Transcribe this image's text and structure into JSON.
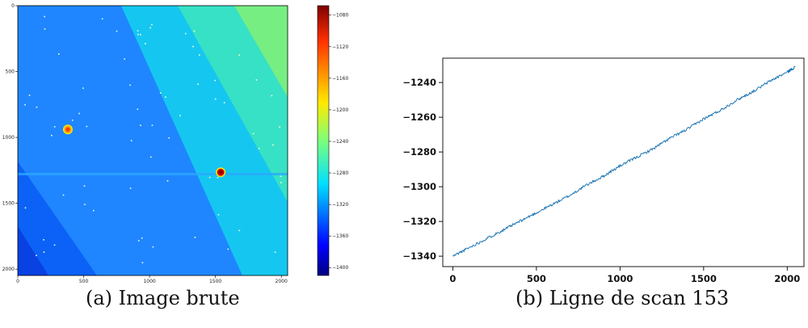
{
  "chart_data": [
    {
      "type": "heatmap",
      "x_ticks": [
        0,
        500,
        1000,
        1500,
        2000
      ],
      "y_ticks": [
        0,
        500,
        1000,
        1500,
        2000
      ],
      "xlim": [
        0,
        2048
      ],
      "ylim": [
        2048,
        0
      ],
      "colorbar": {
        "ticks": [
          -1080,
          -1120,
          -1160,
          -1200,
          -1240,
          -1280,
          -1320,
          -1360,
          -1400
        ],
        "range": [
          -1410,
          -1068
        ],
        "colormap": "jet"
      },
      "seam_row": 1280,
      "spots": [
        {
          "x": 380,
          "y": 940,
          "value": -1130
        },
        {
          "x": 1540,
          "y": 1265,
          "value": -1075
        }
      ],
      "caption": "(a) Image brute"
    },
    {
      "type": "line",
      "x": [
        0,
        100,
        200,
        300,
        400,
        500,
        600,
        700,
        800,
        900,
        1000,
        1100,
        1200,
        1300,
        1400,
        1500,
        1600,
        1700,
        1800,
        1900,
        2000,
        2048
      ],
      "series": [
        {
          "values": [
            -1340,
            -1335,
            -1330,
            -1325,
            -1320,
            -1315,
            -1310,
            -1305,
            -1299,
            -1294,
            -1288,
            -1283,
            -1278,
            -1272,
            -1267,
            -1261,
            -1256,
            -1250,
            -1245,
            -1239,
            -1234,
            -1231
          ]
        }
      ],
      "xlim": [
        -60,
        2100
      ],
      "ylim": [
        -1346,
        -1226
      ],
      "x_ticks": [
        0,
        500,
        1000,
        1500,
        2000
      ],
      "y_ticks": [
        -1240,
        -1260,
        -1280,
        -1300,
        -1320,
        -1340
      ],
      "line_color": "#1f77b4",
      "caption": "(b) Ligne de scan 153"
    }
  ]
}
